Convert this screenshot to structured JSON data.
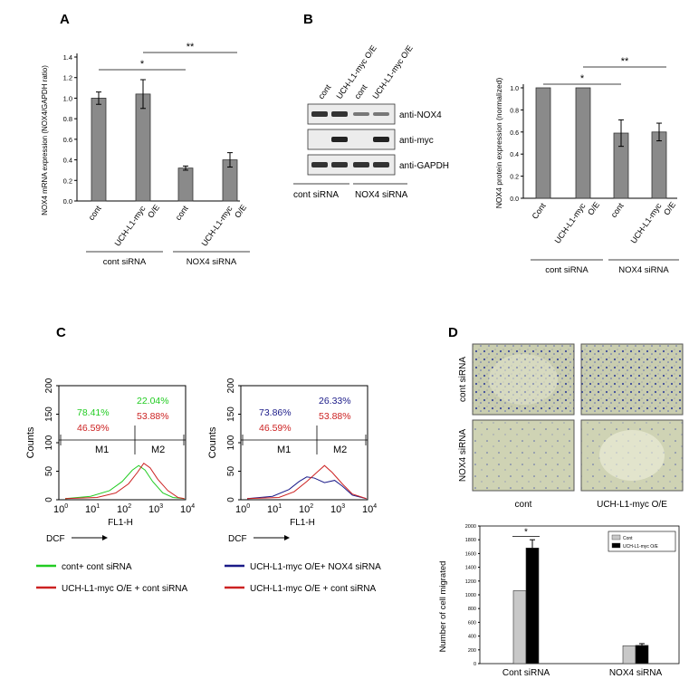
{
  "panels": {
    "A": "A",
    "B": "B",
    "C": "C",
    "D": "D"
  },
  "colors": {
    "bar_gray": "#8a8a8a",
    "green": "#22cc22",
    "red": "#cc2222",
    "navy": "#1a1a88",
    "bar_light": "#c8c8c8",
    "bar_black": "#000000"
  },
  "sig": {
    "one": "*",
    "two": "**"
  },
  "blot": {
    "lane_labels": [
      "cont",
      "UCH-L1-myc O/E",
      "cont",
      "UCH-L1-myc O/E"
    ],
    "band_labels": [
      "anti-NOX4",
      "anti-myc",
      "anti-GAPDH"
    ],
    "group_labels": [
      "cont siRNA",
      "NOX4 siRNA"
    ]
  },
  "flow": {
    "xlabel": "FL1-H",
    "ylabel": "Counts",
    "ytick_labels": [
      "0",
      "50",
      "100",
      "150",
      "200"
    ],
    "xtick_labels": [
      "10^0",
      "10^1",
      "10^2",
      "10^3",
      "10^4"
    ],
    "gates": [
      "M1",
      "M2"
    ],
    "left": {
      "pct_m1_a": "78.41%",
      "pct_m1_b": "46.59%",
      "pct_m2_a": "22.04%",
      "pct_m2_b": "53.88%"
    },
    "right": {
      "pct_m1_a": "73.86%",
      "pct_m1_b": "46.59%",
      "pct_m2_a": "26.33%",
      "pct_m2_b": "53.88%"
    },
    "dcf": "DCF",
    "legend": [
      "cont+ cont siRNA",
      "UCH-L1-myc O/E + cont siRNA",
      "UCH-L1-myc O/E+ NOX4 siRNA",
      "UCH-L1-myc O/E + cont siRNA"
    ]
  },
  "micro": {
    "row_labels": [
      "cont siRNA",
      "NOX4 siRNA"
    ],
    "col_labels": [
      "cont",
      "UCH-L1-myc O/E"
    ]
  },
  "chart_data": [
    {
      "id": "A",
      "type": "bar",
      "categories": [
        "cont",
        "UCH-L1-myc O/E",
        "cont",
        "UCH-L1-myc O/E"
      ],
      "groups": [
        "cont siRNA",
        "NOX4 siRNA"
      ],
      "values": [
        1.0,
        1.04,
        0.32,
        0.4
      ],
      "errors": [
        0.06,
        0.14,
        0.02,
        0.07
      ],
      "ylabel": "NOX4 mRNA expression (NOX4/GAPDH ratio)",
      "ylim": [
        0,
        1.4
      ],
      "yticks": [
        "0.0",
        "0.2",
        "0.4",
        "0.6",
        "0.8",
        "1.0",
        "1.2",
        "1.4"
      ]
    },
    {
      "id": "B",
      "type": "bar",
      "categories": [
        "Cont",
        "UCH-L1-myc O/E",
        "cont",
        "UCH-L1-myc O/E"
      ],
      "groups": [
        "cont siRNA",
        "NOX4 siRNA"
      ],
      "values": [
        1.0,
        1.0,
        0.59,
        0.6
      ],
      "errors": [
        0,
        0,
        0.12,
        0.08
      ],
      "ylabel": "NOX4 protein expression (normalized)",
      "ylim": [
        0,
        1.0
      ],
      "yticks": [
        "0.0",
        "0.2",
        "0.4",
        "0.6",
        "0.8",
        "1.0"
      ]
    },
    {
      "id": "D",
      "type": "bar",
      "categories": [
        "Cont siRNA",
        "NOX4 siRNA"
      ],
      "series": [
        {
          "name": "Cont",
          "values": [
            1060,
            260
          ]
        },
        {
          "name": "UCH-L1-myc O/E",
          "values": [
            1680,
            265
          ]
        }
      ],
      "errors": [
        [
          0,
          0
        ],
        [
          120,
          25
        ]
      ],
      "ylabel": "Number of cell migrated",
      "ylim": [
        0,
        2000
      ],
      "yticks": [
        "0",
        "200",
        "400",
        "600",
        "800",
        "1000",
        "1200",
        "1400",
        "1600",
        "1800",
        "2000"
      ]
    }
  ]
}
